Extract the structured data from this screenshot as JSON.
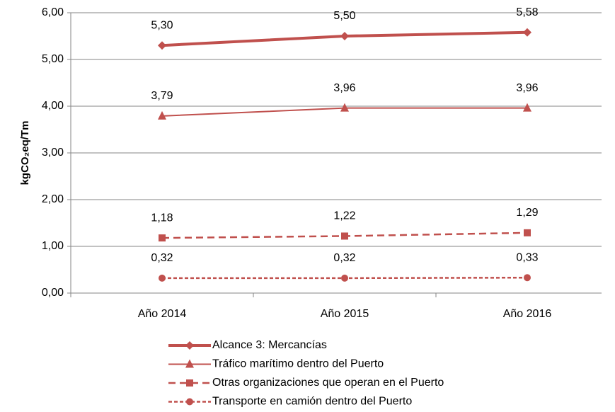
{
  "chart_data": {
    "type": "line",
    "y_label": "kgCO₂eq/Tm",
    "categories": [
      "Año 2014",
      "Año 2015",
      "Año 2016"
    ],
    "ylim": [
      0,
      6
    ],
    "yticks": [
      {
        "value": 0,
        "label": "0,00"
      },
      {
        "value": 1,
        "label": "1,00"
      },
      {
        "value": 2,
        "label": "2,00"
      },
      {
        "value": 3,
        "label": "3,00"
      },
      {
        "value": 4,
        "label": "4,00"
      },
      {
        "value": 5,
        "label": "5,00"
      },
      {
        "value": 6,
        "label": "6,00"
      }
    ],
    "grid": true,
    "legend": "bottom",
    "series": [
      {
        "name": "Alcance 3: Mercancías",
        "color": "#c0504d",
        "marker": "diamond",
        "line": "solid-thick",
        "values": [
          5.3,
          5.5,
          5.58
        ],
        "value_labels": [
          "5,30",
          "5,50",
          "5,58"
        ]
      },
      {
        "name": "Tráfico marítimo dentro del Puerto",
        "color": "#c0504d",
        "marker": "triangle",
        "line": "solid",
        "values": [
          3.79,
          3.96,
          3.96
        ],
        "value_labels": [
          "3,79",
          "3,96",
          "3,96"
        ]
      },
      {
        "name": "Otras organizaciones que operan en el Puerto",
        "color": "#c0504d",
        "marker": "square",
        "line": "dashed",
        "values": [
          1.18,
          1.22,
          1.29
        ],
        "value_labels": [
          "1,18",
          "1,22",
          "1,29"
        ]
      },
      {
        "name": "Transporte en camión dentro del Puerto",
        "color": "#c0504d",
        "marker": "circle",
        "line": "dotted",
        "values": [
          0.32,
          0.32,
          0.33
        ],
        "value_labels": [
          "0,32",
          "0,32",
          "0,33"
        ]
      }
    ]
  }
}
